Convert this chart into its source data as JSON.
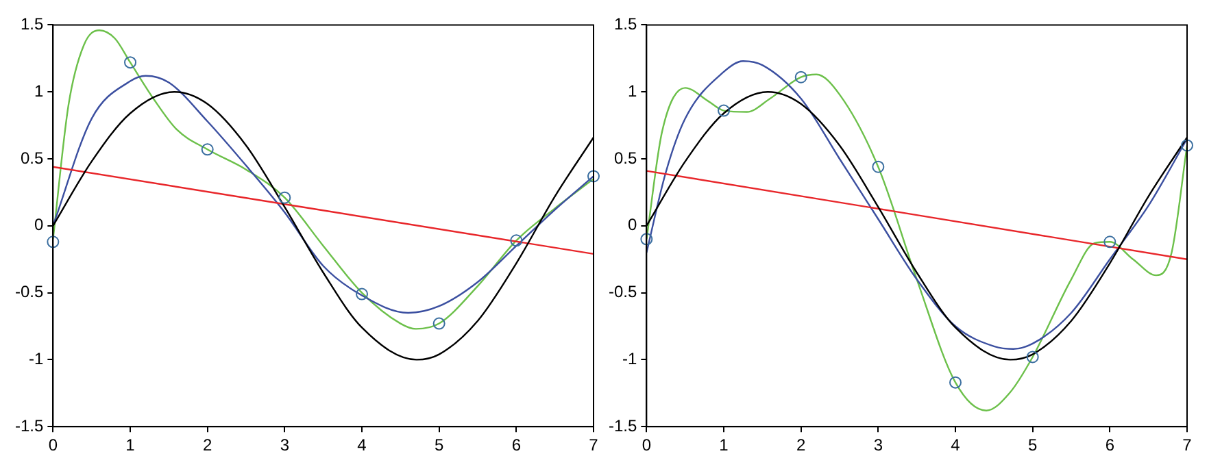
{
  "chart_data": [
    {
      "type": "line",
      "xlim": [
        0,
        7
      ],
      "xticks": [
        0,
        1,
        2,
        3,
        4,
        5,
        6,
        7
      ],
      "ylim": [
        -1.5,
        1.5
      ],
      "yticks": [
        -1.5,
        -1,
        -0.5,
        0,
        0.5,
        1,
        1.5
      ],
      "grid": false,
      "legend": false,
      "marker": "none",
      "line_style": "solid",
      "series": [
        {
          "type": "line",
          "color": "#000000",
          "x": [
            0,
            0.5,
            1,
            1.57,
            2,
            2.5,
            3,
            3.5,
            4,
            4.71,
            5,
            5.5,
            6,
            6.5,
            7
          ],
          "values": [
            0,
            0.48,
            0.84,
            1.0,
            0.91,
            0.6,
            0.14,
            -0.35,
            -0.76,
            -1.0,
            -0.96,
            -0.71,
            -0.28,
            0.22,
            0.66
          ]
        },
        {
          "type": "line",
          "color": "#e8262a",
          "x": [
            0,
            7
          ],
          "values": [
            0.44,
            -0.21
          ]
        },
        {
          "type": "line",
          "color": "#3b4fa0",
          "x": [
            0,
            0.5,
            1,
            1.2,
            1.5,
            2,
            2.5,
            3,
            3.5,
            4,
            4.6,
            5,
            5.5,
            6,
            6.5,
            7
          ],
          "values": [
            0,
            0.8,
            1.08,
            1.12,
            1.07,
            0.78,
            0.45,
            0.1,
            -0.3,
            -0.52,
            -0.65,
            -0.6,
            -0.42,
            -0.15,
            0.12,
            0.37
          ]
        },
        {
          "type": "line",
          "color": "#6cc04a",
          "x": [
            0,
            0.2,
            0.4,
            0.6,
            0.8,
            1,
            1.3,
            1.6,
            2,
            2.5,
            3,
            3.5,
            4,
            4.5,
            4.7,
            5,
            5.5,
            6,
            6.5,
            7
          ],
          "values": [
            -0.1,
            0.9,
            1.35,
            1.46,
            1.4,
            1.22,
            0.95,
            0.72,
            0.57,
            0.42,
            0.21,
            -0.15,
            -0.5,
            -0.73,
            -0.77,
            -0.73,
            -0.45,
            -0.11,
            0.13,
            0.35
          ]
        },
        {
          "type": "scatter",
          "color": "#3b6fa0",
          "marker": "circle",
          "x": [
            0,
            1,
            2,
            3,
            4,
            5,
            6,
            7
          ],
          "values": [
            -0.12,
            1.22,
            0.57,
            0.21,
            -0.51,
            -0.73,
            -0.11,
            0.37
          ]
        }
      ]
    },
    {
      "type": "line",
      "xlim": [
        0,
        7
      ],
      "xticks": [
        0,
        1,
        2,
        3,
        4,
        5,
        6,
        7
      ],
      "ylim": [
        -1.5,
        1.5
      ],
      "yticks": [
        -1.5,
        -1,
        -0.5,
        0,
        0.5,
        1,
        1.5
      ],
      "grid": false,
      "legend": false,
      "marker": "none",
      "line_style": "solid",
      "series": [
        {
          "type": "line",
          "color": "#000000",
          "x": [
            0,
            0.5,
            1,
            1.57,
            2,
            2.5,
            3,
            3.5,
            4,
            4.71,
            5,
            5.5,
            6,
            6.5,
            7
          ],
          "values": [
            0,
            0.48,
            0.84,
            1.0,
            0.91,
            0.6,
            0.14,
            -0.35,
            -0.76,
            -1.0,
            -0.96,
            -0.71,
            -0.28,
            0.22,
            0.66
          ]
        },
        {
          "type": "line",
          "color": "#e8262a",
          "x": [
            0,
            7
          ],
          "values": [
            0.41,
            -0.25
          ]
        },
        {
          "type": "line",
          "color": "#3b4fa0",
          "x": [
            0,
            0.25,
            0.5,
            1,
            1.25,
            1.5,
            2,
            2.5,
            3,
            3.5,
            4,
            4.5,
            4.75,
            5,
            5.5,
            6,
            6.5,
            7
          ],
          "values": [
            -0.2,
            0.4,
            0.8,
            1.15,
            1.23,
            1.2,
            0.95,
            0.5,
            0.05,
            -0.4,
            -0.75,
            -0.9,
            -0.92,
            -0.88,
            -0.65,
            -0.25,
            0.15,
            0.65
          ]
        },
        {
          "type": "line",
          "color": "#6cc04a",
          "x": [
            0,
            0.2,
            0.5,
            0.8,
            1,
            1.3,
            1.6,
            2,
            2.2,
            2.5,
            3,
            3.5,
            4,
            4.4,
            4.7,
            5,
            5.5,
            5.8,
            6,
            6.3,
            6.6,
            6.8,
            7
          ],
          "values": [
            -0.1,
            0.7,
            1.03,
            0.93,
            0.86,
            0.85,
            0.95,
            1.11,
            1.13,
            0.98,
            0.44,
            -0.4,
            -1.17,
            -1.38,
            -1.25,
            -0.98,
            -0.4,
            -0.13,
            -0.12,
            -0.25,
            -0.37,
            -0.2,
            0.6
          ]
        },
        {
          "type": "scatter",
          "color": "#3b6fa0",
          "marker": "circle",
          "x": [
            0,
            1,
            2,
            3,
            4,
            5,
            6,
            7
          ],
          "values": [
            -0.1,
            0.86,
            1.11,
            0.44,
            -1.17,
            -0.98,
            -0.12,
            0.6
          ]
        }
      ]
    }
  ]
}
